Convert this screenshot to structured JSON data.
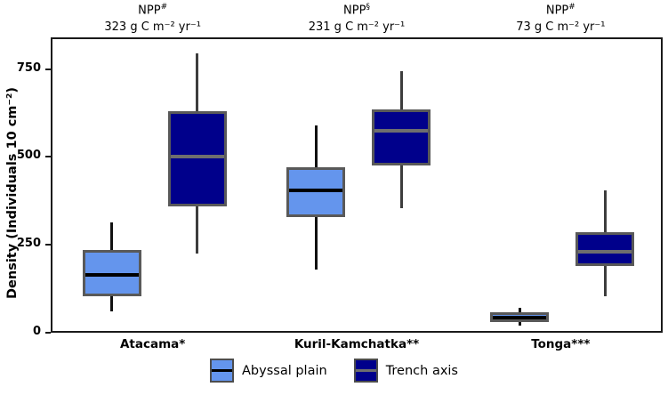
{
  "chart_data": {
    "type": "boxplot",
    "title": "",
    "ylabel": "Density (Individuals 10 cm⁻²)",
    "ylim": [
      0,
      840
    ],
    "yticks": [
      0,
      250,
      500,
      750
    ],
    "grid": false,
    "legend_position": "bottom",
    "groups": [
      {
        "label": "Atacama*",
        "npp_prefix": "NPP",
        "npp_sup": "#",
        "npp_value": "323 g C m⁻² yr⁻¹"
      },
      {
        "label": "Kuril-Kamchatka**",
        "npp_prefix": "NPP",
        "npp_sup": "§",
        "npp_value": "231 g C m⁻² yr⁻¹"
      },
      {
        "label": "Tonga***",
        "npp_prefix": "NPP",
        "npp_sup": "#",
        "npp_value": "73 g C m⁻² yr⁻¹"
      }
    ],
    "series": [
      {
        "name": "Abyssal plain",
        "fill": "#6495ED",
        "border": "#595959",
        "median_color": "#000000",
        "whisker_color": "#111111",
        "boxes": [
          {
            "low": 65,
            "q1": 110,
            "median": 170,
            "q3": 240,
            "high": 320
          },
          {
            "low": 185,
            "q1": 335,
            "median": 410,
            "q3": 475,
            "high": 595
          },
          {
            "low": 25,
            "q1": 35,
            "median": 48,
            "q3": 62,
            "high": 75
          }
        ]
      },
      {
        "name": "Trench axis",
        "fill": "#00008B",
        "border": "#595959",
        "median_color": "#6e6e6e",
        "whisker_color": "#3d3d3d",
        "boxes": [
          {
            "low": 230,
            "q1": 365,
            "median": 505,
            "q3": 635,
            "high": 800
          },
          {
            "low": 360,
            "q1": 480,
            "median": 580,
            "q3": 640,
            "high": 750
          },
          {
            "low": 110,
            "q1": 195,
            "median": 235,
            "q3": 290,
            "high": 410
          }
        ]
      }
    ]
  }
}
